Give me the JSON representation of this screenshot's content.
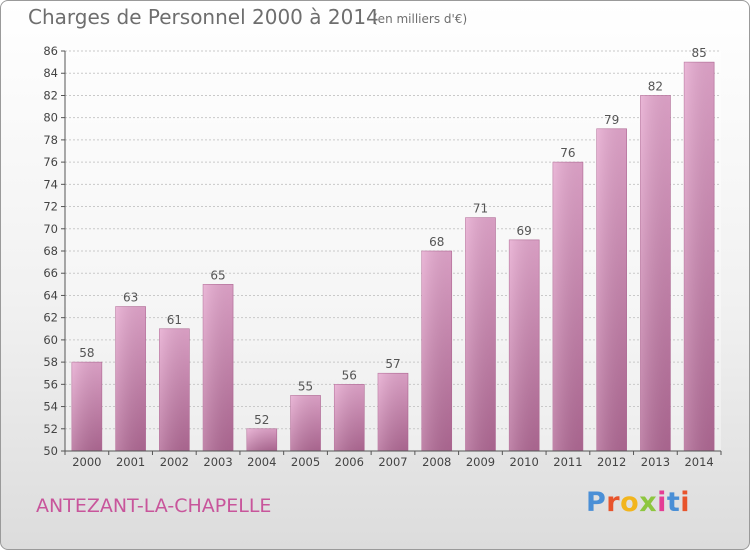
{
  "chart_data": {
    "type": "bar",
    "title": "Charges de Personnel 2000 à 2014",
    "subtitle": "(en milliers d'€)",
    "categories": [
      "2000",
      "2001",
      "2002",
      "2003",
      "2004",
      "2005",
      "2006",
      "2007",
      "2008",
      "2009",
      "2010",
      "2011",
      "2012",
      "2013",
      "2014"
    ],
    "values": [
      58,
      63,
      61,
      65,
      52,
      55,
      56,
      57,
      68,
      71,
      69,
      76,
      79,
      82,
      85
    ],
    "ylim": [
      50,
      86
    ],
    "ytick_step": 2,
    "grid": true,
    "bar_color": "#d98fbc",
    "xlabel": "",
    "ylabel": ""
  },
  "commune": "ANTEZANT-LA-CHAPELLE",
  "logo": {
    "letters": [
      "P",
      "r",
      "o",
      "x",
      "i",
      "t",
      "i"
    ],
    "colors": [
      "#4a8fd6",
      "#e8542c",
      "#f2b51d",
      "#8dc63f",
      "#e43d94",
      "#4a8fd6",
      "#e8542c"
    ]
  }
}
